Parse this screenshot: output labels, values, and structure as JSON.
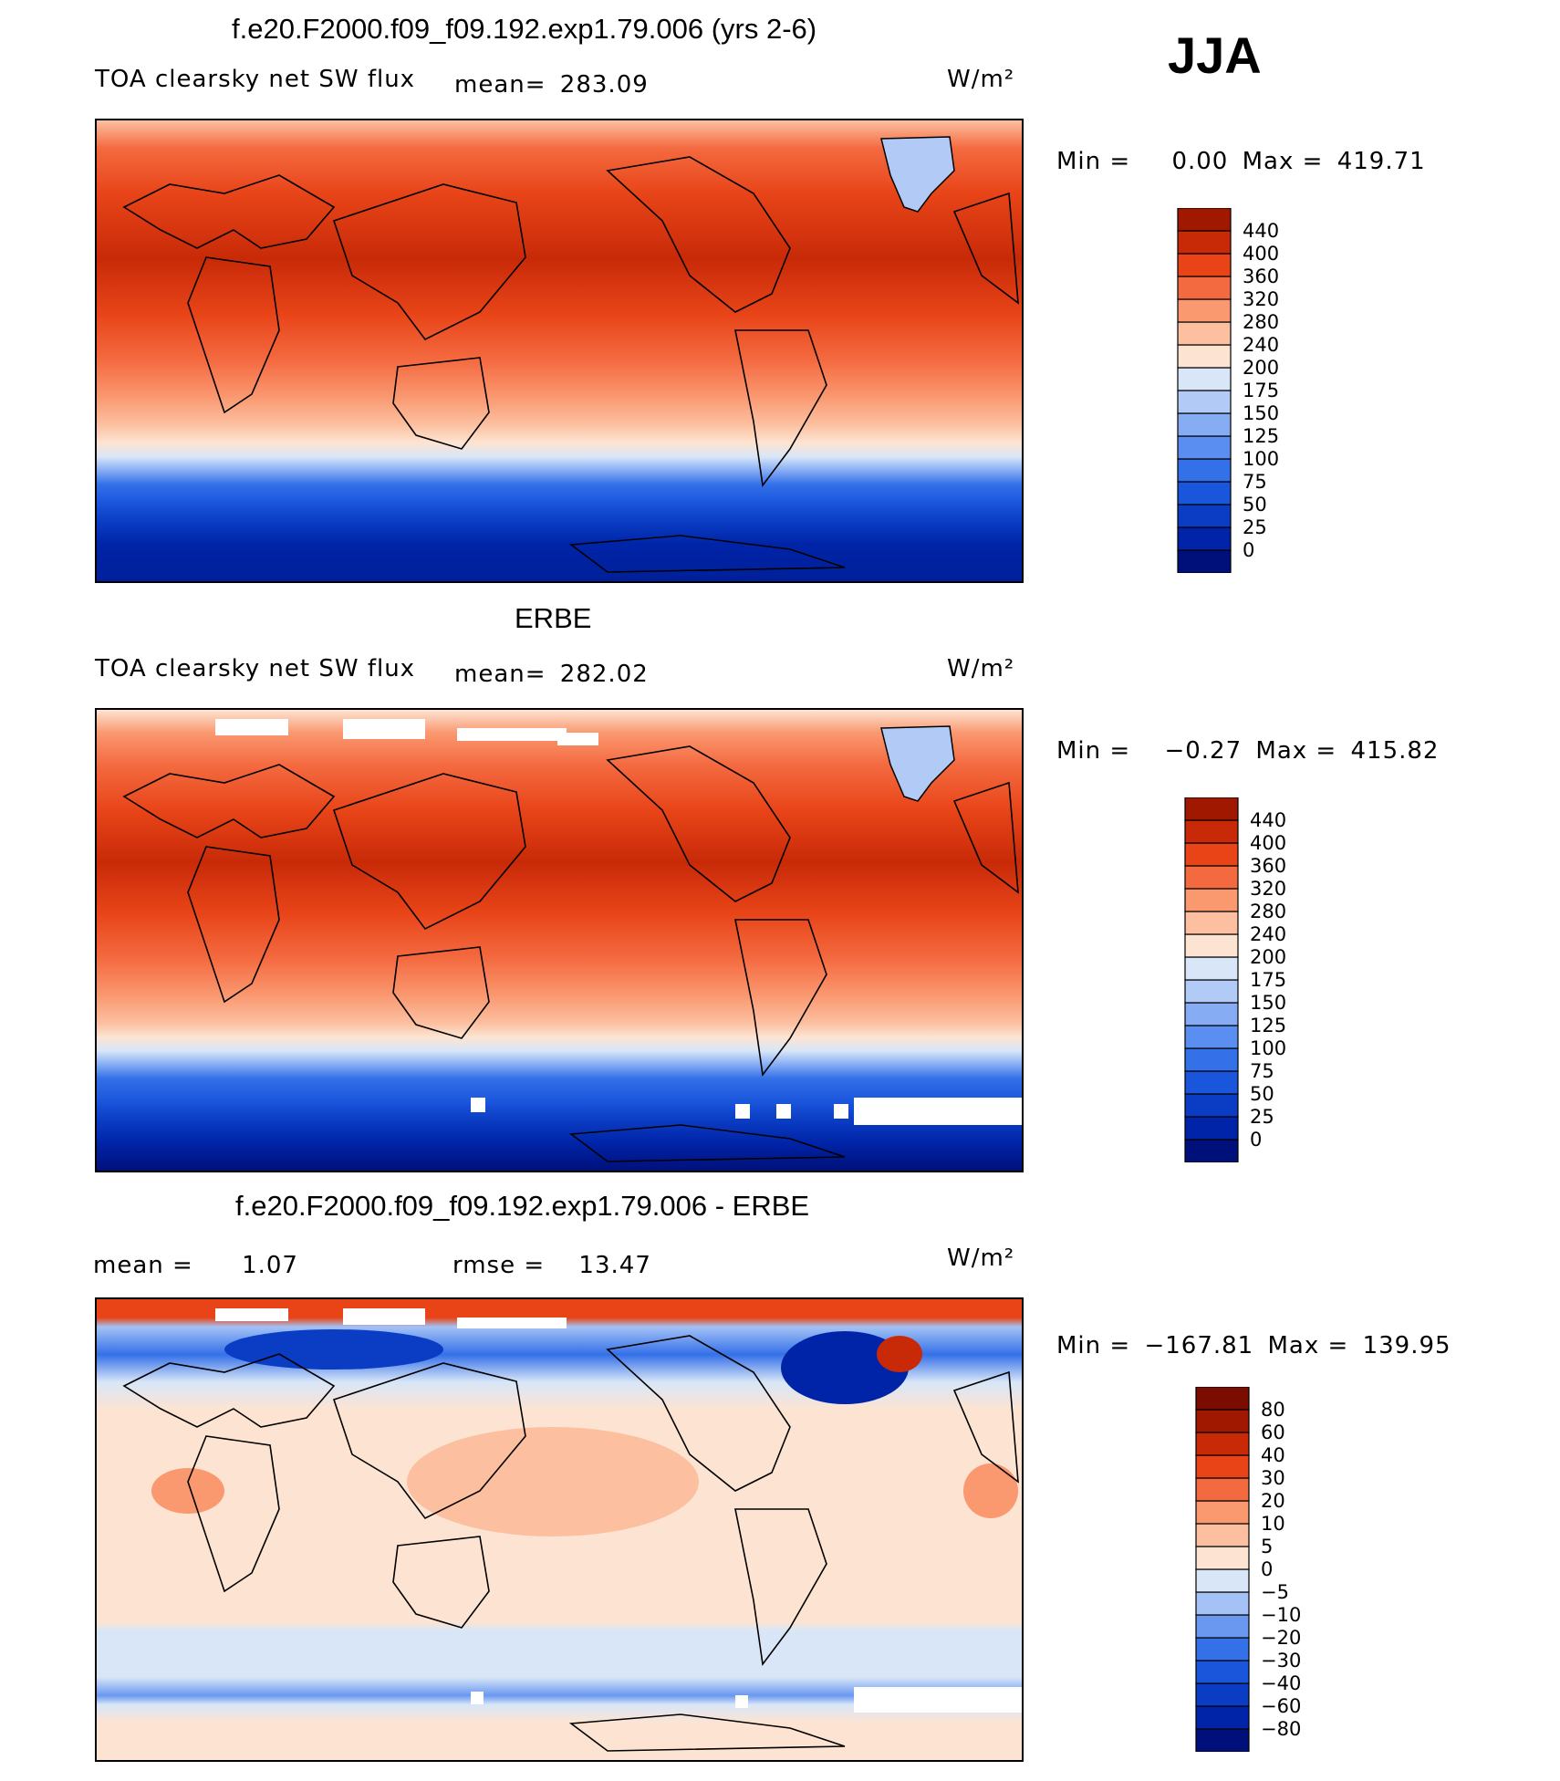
{
  "season": "JJA",
  "units_label": "W/m²",
  "panels": [
    {
      "id": "model",
      "title": "f.e20.F2000.f09_f09.192.exp1.79.006 (yrs 2-6)",
      "variable": "TOA clearsky net SW flux",
      "stat_label": "mean=",
      "stat_value": "283.09",
      "min_label": "Min =",
      "min_value": "0.00",
      "max_label": "Max =",
      "max_value": "419.71"
    },
    {
      "id": "obs",
      "title": "ERBE",
      "variable": "TOA clearsky net SW flux",
      "stat_label": "mean=",
      "stat_value": "282.02",
      "min_label": "Min =",
      "min_value": "−0.27",
      "max_label": "Max =",
      "max_value": "415.82"
    },
    {
      "id": "diff",
      "title": "f.e20.F2000.f09_f09.192.exp1.79.006 - ERBE",
      "mean_label": "mean =",
      "mean_value": "1.07",
      "rmse_label": "rmse =",
      "rmse_value": "13.47",
      "min_label": "Min =",
      "min_value": "−167.81",
      "max_label": "Max =",
      "max_value": "139.95"
    }
  ],
  "chart_data": [
    {
      "type": "heatmap",
      "title": "f.e20.F2000.f09_f09.192.exp1.79.006 (yrs 2-6)",
      "subtitle": "TOA clearsky net SW flux",
      "units": "W/m²",
      "mean": 283.09,
      "min": 0.0,
      "max": 419.71,
      "colorbar_levels": [
        0,
        25,
        50,
        75,
        100,
        125,
        150,
        175,
        200,
        240,
        280,
        320,
        360,
        400,
        440
      ],
      "colorbar_colors": [
        "#00107a",
        "#0024a8",
        "#0a3dc4",
        "#1a56dc",
        "#3470e8",
        "#5a8ef0",
        "#86acf4",
        "#b2cbf6",
        "#d8e6f8",
        "#fde4d2",
        "#fcc0a0",
        "#fa9870",
        "#f46a40",
        "#e84418",
        "#c82a08",
        "#a01800"
      ]
    },
    {
      "type": "heatmap",
      "title": "ERBE",
      "subtitle": "TOA clearsky net SW flux",
      "units": "W/m²",
      "mean": 282.02,
      "min": -0.27,
      "max": 415.82,
      "colorbar_levels": [
        0,
        25,
        50,
        75,
        100,
        125,
        150,
        175,
        200,
        240,
        280,
        320,
        360,
        400,
        440
      ],
      "colorbar_colors": [
        "#00107a",
        "#0024a8",
        "#0a3dc4",
        "#1a56dc",
        "#3470e8",
        "#5a8ef0",
        "#86acf4",
        "#b2cbf6",
        "#d8e6f8",
        "#fde4d2",
        "#fcc0a0",
        "#fa9870",
        "#f46a40",
        "#e84418",
        "#c82a08",
        "#a01800"
      ]
    },
    {
      "type": "heatmap",
      "title": "f.e20.F2000.f09_f09.192.exp1.79.006 - ERBE",
      "units": "W/m²",
      "mean": 1.07,
      "rmse": 13.47,
      "min": -167.81,
      "max": 139.95,
      "colorbar_levels": [
        -80,
        -60,
        -40,
        -30,
        -20,
        -10,
        -5,
        0,
        5,
        10,
        20,
        30,
        40,
        60,
        80
      ],
      "colorbar_colors": [
        "#00107a",
        "#0024a8",
        "#0a3dc4",
        "#1a56dc",
        "#3470e8",
        "#6a98f0",
        "#a4c2f6",
        "#d8e6f8",
        "#fde4d2",
        "#fcc0a0",
        "#fa9870",
        "#f46a40",
        "#e84418",
        "#c82a08",
        "#a01800",
        "#7a0c00"
      ]
    }
  ]
}
